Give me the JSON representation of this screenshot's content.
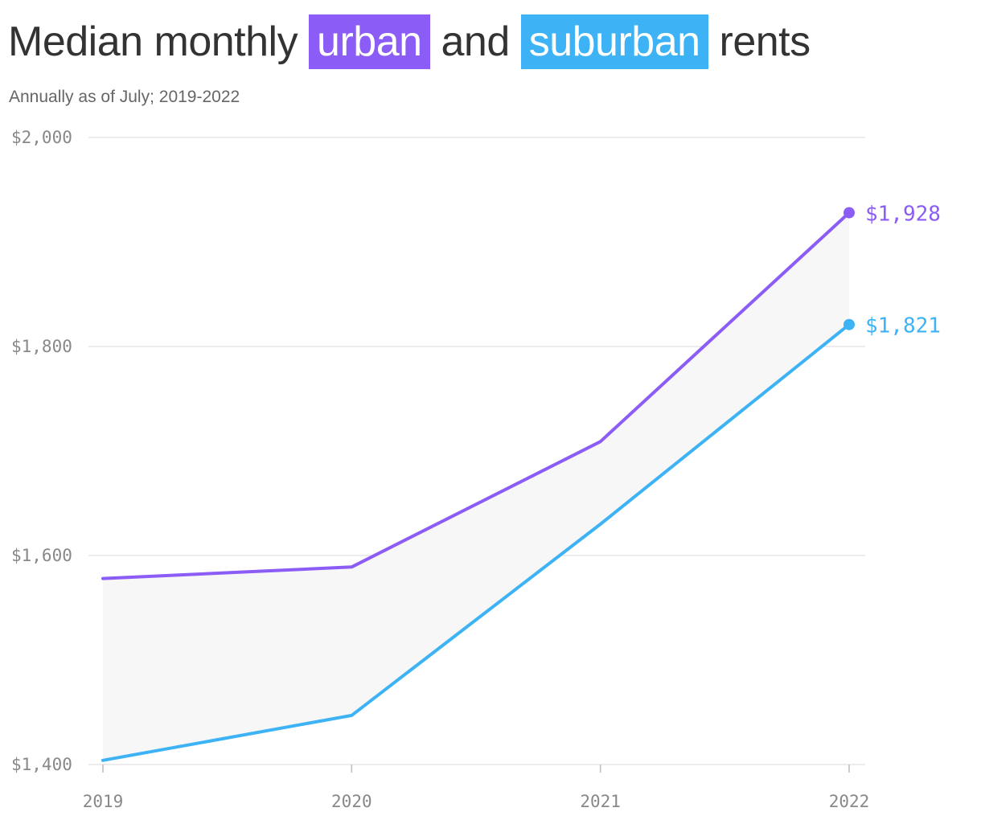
{
  "header": {
    "title_pre": "Median monthly",
    "title_urban": "urban",
    "title_and": "and",
    "title_suburban": "suburban",
    "title_post": "rents",
    "subtitle": "Annually as of July; 2019-2022"
  },
  "colors": {
    "urban": "#8b5cf6",
    "suburban": "#3db3f5",
    "band": "#f7f7f7",
    "grid": "#e6e6e6"
  },
  "chart_data": {
    "type": "line",
    "title": "Median monthly urban and suburban rents",
    "subtitle": "Annually as of July; 2019-2022",
    "x": [
      "2019",
      "2020",
      "2021",
      "2022"
    ],
    "series": [
      {
        "name": "urban",
        "values": [
          1578,
          1589,
          1709,
          1928
        ],
        "end_label": "$1,928"
      },
      {
        "name": "suburban",
        "values": [
          1404,
          1447,
          1630,
          1821
        ],
        "end_label": "$1,821"
      }
    ],
    "ylim": [
      1400,
      2000
    ],
    "yticks": [
      1400,
      1600,
      1800,
      2000
    ],
    "ytick_labels": [
      "$1,400",
      "$1,600",
      "$1,800",
      "$2,000"
    ],
    "xlabel": "",
    "ylabel": "",
    "grid": true,
    "legend": "none (colored words in title)"
  }
}
